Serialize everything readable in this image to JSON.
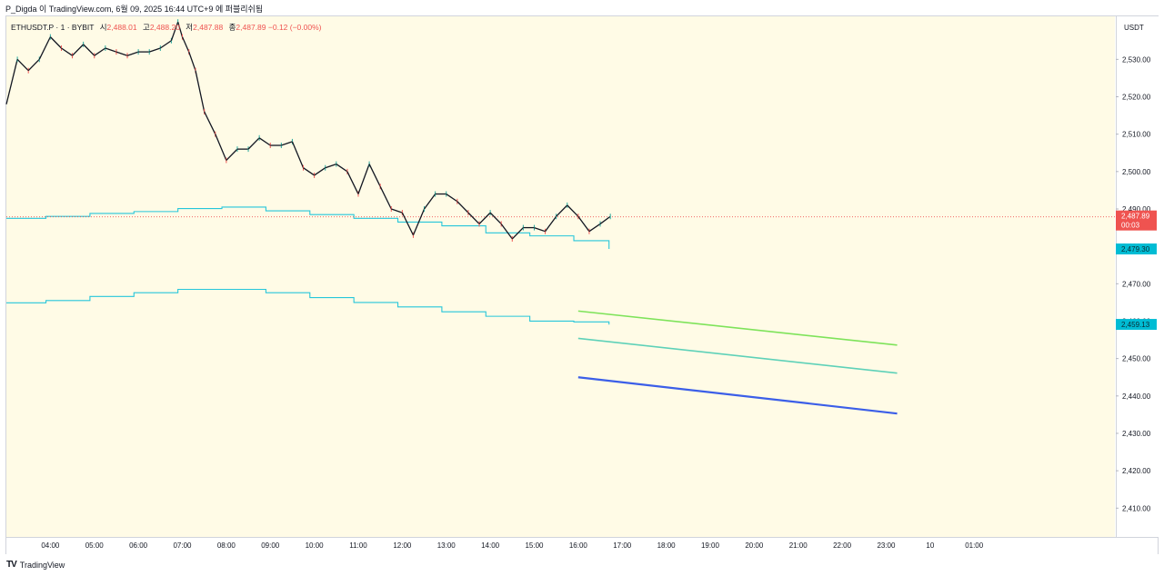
{
  "header": {
    "text": "P_Digda 이 TradingView.com, 6월 09, 2025 16:44 UTC+9 에 퍼블리쉬됨"
  },
  "legend": {
    "symbol": "ETHUSDT.P · 1 · BYBIT",
    "open_label": "시",
    "open_value": "2,488.01",
    "high_label": "고",
    "high_value": "2,488.20",
    "low_label": "저",
    "low_value": "2,487.88",
    "close_label": "종",
    "close_value": "2,487.89",
    "change": "−0.12 (−0.00%)"
  },
  "footer": {
    "brand": "TradingView"
  },
  "colors": {
    "background": "#fffbe6",
    "band_line": "#26c6da",
    "up_candle": "#26a69a",
    "down_candle": "#ef5350",
    "green_line": "#7ee35a",
    "teal_line": "#5ed1b8",
    "blue_line": "#3b5ee8",
    "price_label_red": "#ef5350",
    "price_label_cyan": "#00bcd4"
  },
  "chart_data": {
    "type": "line",
    "title": "ETHUSDT.P · 1 · BYBIT",
    "currency": "USDT",
    "y_axis": {
      "ticks": [
        2410,
        2420,
        2430,
        2440,
        2450,
        2460,
        2470,
        2480,
        2490,
        2500,
        2510,
        2520,
        2530
      ],
      "tick_labels": [
        "2,410.00",
        "2,420.00",
        "2,430.00",
        "2,440.00",
        "2,450.00",
        "2,460.00",
        "2,470.00",
        "2,480.00",
        "2,490.00",
        "2,500.00",
        "2,510.00",
        "2,520.00",
        "2,530.00"
      ],
      "range": [
        2402.3,
        2541.5
      ]
    },
    "x_axis": {
      "ticks": [
        4,
        5,
        6,
        7,
        8,
        9,
        10,
        11,
        12,
        13,
        14,
        15,
        16,
        17,
        18,
        19,
        20,
        21,
        22,
        23,
        24,
        25
      ],
      "tick_labels": [
        "04:00",
        "05:00",
        "06:00",
        "07:00",
        "08:00",
        "09:00",
        "10:00",
        "11:00",
        "12:00",
        "13:00",
        "14:00",
        "15:00",
        "16:00",
        "17:00",
        "18:00",
        "19:00",
        "20:00",
        "21:00",
        "22:00",
        "23:00",
        "10",
        "01:00"
      ],
      "range": [
        3.0,
        28.2
      ]
    },
    "price_series": {
      "name": "ETHUSDT.P close",
      "x": [
        3.0,
        3.25,
        3.5,
        3.75,
        4.0,
        4.25,
        4.5,
        4.75,
        5.0,
        5.25,
        5.5,
        5.75,
        6.0,
        6.25,
        6.5,
        6.75,
        6.9,
        7.0,
        7.15,
        7.3,
        7.5,
        7.75,
        8.0,
        8.25,
        8.5,
        8.75,
        9.0,
        9.25,
        9.5,
        9.75,
        10.0,
        10.25,
        10.5,
        10.75,
        11.0,
        11.25,
        11.5,
        11.75,
        12.0,
        12.25,
        12.5,
        12.75,
        13.0,
        13.25,
        13.5,
        13.75,
        14.0,
        14.25,
        14.5,
        14.75,
        15.0,
        15.25,
        15.5,
        15.75,
        16.0,
        16.25,
        16.5,
        16.73
      ],
      "y": [
        2518,
        2530,
        2527,
        2530,
        2536,
        2533,
        2531,
        2534,
        2531,
        2533,
        2532,
        2531,
        2532,
        2532,
        2533,
        2535,
        2540,
        2536,
        2532,
        2527,
        2516,
        2510,
        2503,
        2506,
        2506,
        2509,
        2507,
        2507,
        2508,
        2501,
        2499,
        2501,
        2502,
        2500,
        2494,
        2502,
        2496,
        2490,
        2489,
        2483,
        2490,
        2494,
        2494,
        2492,
        2489,
        2486,
        2489,
        2486,
        2482,
        2485,
        2485,
        2484,
        2488,
        2491,
        2488,
        2484,
        2486,
        2488
      ]
    },
    "upper_band": {
      "x": [
        3.0,
        3.9,
        4.9,
        5.9,
        6.9,
        7.9,
        8.9,
        9.9,
        10.9,
        11.9,
        12.9,
        13.9,
        14.9,
        15.9,
        16.7
      ],
      "y": [
        2487.5,
        2488.0,
        2488.8,
        2489.3,
        2490.1,
        2490.5,
        2489.5,
        2488.5,
        2487.5,
        2486.5,
        2485.5,
        2483.6,
        2482.8,
        2481.5,
        2479.3
      ]
    },
    "lower_band": {
      "x": [
        3.0,
        3.9,
        4.9,
        5.9,
        6.9,
        7.9,
        8.9,
        9.9,
        10.9,
        11.9,
        12.9,
        13.9,
        14.9,
        15.9,
        16.7
      ],
      "y": [
        2464.9,
        2465.5,
        2466.6,
        2467.6,
        2468.5,
        2468.5,
        2467.6,
        2466.3,
        2465.0,
        2463.8,
        2462.5,
        2461.3,
        2460.0,
        2459.8,
        2459.1
      ]
    },
    "projection_lines": [
      {
        "name": "green",
        "x": [
          16.0,
          23.25
        ],
        "y": [
          2462.7,
          2453.6
        ]
      },
      {
        "name": "teal",
        "x": [
          16.0,
          23.25
        ],
        "y": [
          2455.4,
          2446.1
        ]
      },
      {
        "name": "blue",
        "x": [
          16.0,
          23.25
        ],
        "y": [
          2445.0,
          2435.3
        ]
      }
    ],
    "current_price": {
      "value": 2487.89,
      "label": "2,487.89",
      "countdown": "00:03"
    },
    "price_labels": [
      {
        "value": 2479.3,
        "label": "2,479.30"
      },
      {
        "value": 2459.13,
        "label": "2,459.13"
      }
    ]
  }
}
